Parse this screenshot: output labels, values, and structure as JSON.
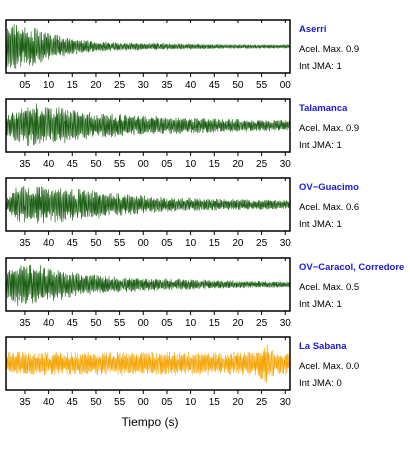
{
  "chart_data": {
    "type": "line",
    "xlabel": "Tiempo (s)",
    "x_unit": "seconds",
    "panels": [
      {
        "station": "Aserri",
        "accel_label": "Acel. Max. 0.9",
        "jma_label": "Int JMA: 1",
        "color": "#1a5e12",
        "tick_labels": [
          "05",
          "10",
          "15",
          "20",
          "25",
          "30",
          "35",
          "40",
          "45",
          "50",
          "55",
          "00"
        ],
        "first_tick_sec": 5,
        "x_range_sec": [
          1,
          61
        ],
        "envelope": [
          [
            1,
            1.0
          ],
          [
            3,
            0.95
          ],
          [
            6,
            0.85
          ],
          [
            10,
            0.6
          ],
          [
            15,
            0.35
          ],
          [
            20,
            0.22
          ],
          [
            30,
            0.15
          ],
          [
            45,
            0.1
          ],
          [
            61,
            0.08
          ]
        ]
      },
      {
        "station": "Talamanca",
        "accel_label": "Acel. Max. 0.9",
        "jma_label": "Int JMA: 1",
        "color": "#1a5e12",
        "tick_labels": [
          "35",
          "40",
          "45",
          "50",
          "55",
          "00",
          "05",
          "10",
          "15",
          "20",
          "25",
          "30"
        ],
        "first_tick_sec": 35,
        "x_range_sec": [
          31,
          91
        ],
        "envelope": [
          [
            31,
            0.55
          ],
          [
            37,
            0.95
          ],
          [
            42,
            0.8
          ],
          [
            50,
            0.55
          ],
          [
            60,
            0.42
          ],
          [
            75,
            0.3
          ],
          [
            91,
            0.22
          ]
        ]
      },
      {
        "station": "OV−Guacimo",
        "accel_label": "Acel. Max. 0.6",
        "jma_label": "Int JMA: 1",
        "color": "#1a5e12",
        "tick_labels": [
          "35",
          "40",
          "45",
          "50",
          "55",
          "00",
          "05",
          "10",
          "15",
          "20",
          "25",
          "30"
        ],
        "first_tick_sec": 35,
        "x_range_sec": [
          31,
          91
        ],
        "envelope": [
          [
            31,
            0.4
          ],
          [
            34,
            0.85
          ],
          [
            42,
            0.75
          ],
          [
            52,
            0.55
          ],
          [
            62,
            0.35
          ],
          [
            75,
            0.25
          ],
          [
            91,
            0.2
          ]
        ]
      },
      {
        "station": "OV−Caracol, Corredore",
        "accel_label": "Acel. Max. 0.5",
        "jma_label": "Int JMA: 1",
        "color": "#1a5e12",
        "tick_labels": [
          "35",
          "40",
          "45",
          "50",
          "55",
          "00",
          "05",
          "10",
          "15",
          "20",
          "25",
          "30"
        ],
        "first_tick_sec": 35,
        "x_range_sec": [
          31,
          91
        ],
        "envelope": [
          [
            31,
            0.5
          ],
          [
            33,
            0.95
          ],
          [
            40,
            0.75
          ],
          [
            48,
            0.45
          ],
          [
            58,
            0.3
          ],
          [
            75,
            0.18
          ],
          [
            91,
            0.12
          ]
        ]
      },
      {
        "station": "La Sabana",
        "accel_label": "Acel. Max. 0.0",
        "jma_label": "Int JMA: 0",
        "color": "#f5a300",
        "tick_labels": [
          "35",
          "40",
          "45",
          "50",
          "55",
          "00",
          "05",
          "10",
          "15",
          "20",
          "25",
          "30"
        ],
        "first_tick_sec": 35,
        "x_range_sec": [
          31,
          91
        ],
        "envelope": [
          [
            31,
            0.5
          ],
          [
            50,
            0.5
          ],
          [
            70,
            0.5
          ],
          [
            84,
            0.5
          ],
          [
            86,
            0.9
          ],
          [
            88,
            0.5
          ],
          [
            91,
            0.5
          ]
        ]
      }
    ]
  }
}
